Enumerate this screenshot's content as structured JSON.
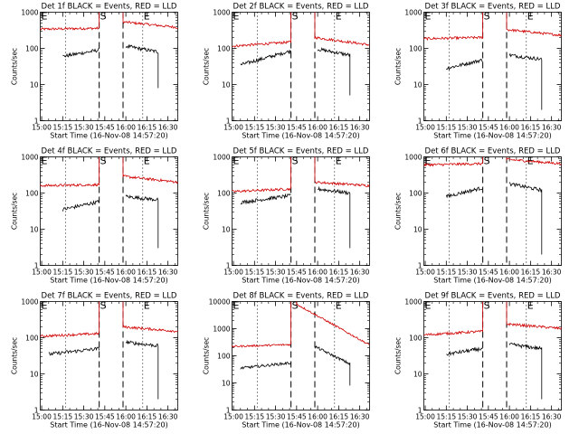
{
  "chart_data": [
    {
      "type": "line",
      "title": "Det 1f BLACK = Events, RED = LLD",
      "xlabel": "Start Time (16-Nov-08 14:57:20)",
      "ylabel": "Counts/sec",
      "y_scale": "log",
      "ylim": [
        1,
        1000
      ],
      "y_ticks": [
        "1",
        "10",
        "100",
        "1000"
      ],
      "x_ticks": [
        "15:00",
        "15:15",
        "15:30",
        "15:45",
        "16:00",
        "16:15",
        "16:30"
      ],
      "xlim": [
        "14:59",
        "16:37"
      ],
      "markers": {
        "dotted": [
          "15:17",
          "16:12"
        ],
        "dashed": [
          "15:41",
          "15:58"
        ],
        "labels": [
          {
            "text": "E",
            "at": "14:59"
          },
          {
            "text": "S",
            "at": "15:41"
          },
          {
            "text": "E",
            "at": "16:12"
          }
        ]
      },
      "series": [
        {
          "color": "#d00000",
          "segments": [
            {
              "start": "14:59",
              "end": "15:41",
              "y0": 340,
              "y1": 360
            },
            {
              "start": "15:58",
              "end": "16:37",
              "y0": 540,
              "y1": 380
            }
          ]
        },
        {
          "color": "#000000",
          "segments": [
            {
              "start": "15:15",
              "end": "15:41",
              "y0": 60,
              "y1": 90
            },
            {
              "start": "16:00",
              "end": "16:23",
              "y0": 115,
              "y1": 80,
              "drop": 8
            }
          ]
        }
      ]
    },
    {
      "type": "line",
      "title": "Det 2f BLACK = Events, RED = LLD",
      "xlabel": "Start Time (16-Nov-08 14:57:20)",
      "ylabel": "Counts/sec",
      "y_scale": "log",
      "ylim": [
        1,
        1000
      ],
      "y_ticks": [
        "1",
        "10",
        "100",
        "1000"
      ],
      "x_ticks": [
        "15:00",
        "15:15",
        "15:30",
        "15:45",
        "16:00",
        "16:15",
        "16:30"
      ],
      "xlim": [
        "14:59",
        "16:37"
      ],
      "markers": {
        "dotted": [
          "15:17",
          "16:12"
        ],
        "dashed": [
          "15:41",
          "15:58"
        ],
        "labels": [
          {
            "text": "E",
            "at": "14:59"
          },
          {
            "text": "S",
            "at": "15:41"
          },
          {
            "text": "E",
            "at": "16:12"
          }
        ]
      },
      "series": [
        {
          "color": "#d00000",
          "segments": [
            {
              "start": "14:59",
              "end": "15:41",
              "y0": 115,
              "y1": 150
            },
            {
              "start": "15:58",
              "end": "16:37",
              "y0": 200,
              "y1": 125
            }
          ]
        },
        {
          "color": "#000000",
          "segments": [
            {
              "start": "15:05",
              "end": "15:41",
              "y0": 35,
              "y1": 85
            },
            {
              "start": "16:00",
              "end": "16:23",
              "y0": 95,
              "y1": 65,
              "drop": 5
            }
          ]
        }
      ]
    },
    {
      "type": "line",
      "title": "Det 3f BLACK = Events, RED = LLD",
      "xlabel": "Start Time (16-Nov-08 14:57:20)",
      "ylabel": "Counts/sec",
      "y_scale": "log",
      "ylim": [
        1,
        1000
      ],
      "y_ticks": [
        "1",
        "10",
        "100",
        "1000"
      ],
      "x_ticks": [
        "15:00",
        "15:15",
        "15:30",
        "15:45",
        "16:00",
        "16:15",
        "16:30"
      ],
      "xlim": [
        "14:59",
        "16:37"
      ],
      "markers": {
        "dotted": [
          "15:17",
          "16:12"
        ],
        "dashed": [
          "15:41",
          "15:58"
        ],
        "labels": [
          {
            "text": "E",
            "at": "14:59"
          },
          {
            "text": "S",
            "at": "15:41"
          },
          {
            "text": "E",
            "at": "16:12"
          }
        ]
      },
      "series": [
        {
          "color": "#d00000",
          "segments": [
            {
              "start": "14:59",
              "end": "15:41",
              "y0": 185,
              "y1": 200
            },
            {
              "start": "15:58",
              "end": "16:37",
              "y0": 330,
              "y1": 230
            }
          ]
        },
        {
          "color": "#000000",
          "segments": [
            {
              "start": "15:15",
              "end": "15:41",
              "y0": 28,
              "y1": 48
            },
            {
              "start": "16:00",
              "end": "16:23",
              "y0": 65,
              "y1": 50,
              "drop": 2
            }
          ]
        }
      ]
    },
    {
      "type": "line",
      "title": "Det 4f BLACK = Events, RED = LLD",
      "xlabel": "Start Time (16-Nov-08 14:57:20)",
      "ylabel": "Counts/sec",
      "y_scale": "log",
      "ylim": [
        1,
        1000
      ],
      "y_ticks": [
        "1",
        "10",
        "100",
        "1000"
      ],
      "x_ticks": [
        "15:00",
        "15:15",
        "15:30",
        "15:45",
        "16:00",
        "16:15",
        "16:30"
      ],
      "xlim": [
        "14:59",
        "16:37"
      ],
      "markers": {
        "dotted": [
          "15:17",
          "16:12"
        ],
        "dashed": [
          "15:41",
          "15:58"
        ],
        "labels": [
          {
            "text": "E",
            "at": "14:59"
          },
          {
            "text": "S",
            "at": "15:41"
          },
          {
            "text": "E",
            "at": "16:12"
          }
        ]
      },
      "series": [
        {
          "color": "#d00000",
          "segments": [
            {
              "start": "14:59",
              "end": "15:41",
              "y0": 160,
              "y1": 170
            },
            {
              "start": "15:58",
              "end": "16:37",
              "y0": 290,
              "y1": 200
            }
          ]
        },
        {
          "color": "#000000",
          "segments": [
            {
              "start": "15:15",
              "end": "15:41",
              "y0": 35,
              "y1": 58
            },
            {
              "start": "16:00",
              "end": "16:23",
              "y0": 80,
              "y1": 65,
              "drop": 3
            }
          ]
        }
      ]
    },
    {
      "type": "line",
      "title": "Det 5f BLACK = Events, RED = LLD",
      "xlabel": "Start Time (16-Nov-08 14:57:20)",
      "ylabel": "Counts/sec",
      "y_scale": "log",
      "ylim": [
        1,
        1000
      ],
      "y_ticks": [
        "1",
        "10",
        "100",
        "1000"
      ],
      "x_ticks": [
        "15:00",
        "15:15",
        "15:30",
        "15:45",
        "16:00",
        "16:15",
        "16:30"
      ],
      "xlim": [
        "14:59",
        "16:37"
      ],
      "markers": {
        "dotted": [
          "15:17",
          "16:12"
        ],
        "dashed": [
          "15:41",
          "15:58"
        ],
        "labels": [
          {
            "text": "E",
            "at": "14:59"
          },
          {
            "text": "S",
            "at": "15:41"
          },
          {
            "text": "E",
            "at": "16:12"
          }
        ]
      },
      "series": [
        {
          "color": "#d00000",
          "segments": [
            {
              "start": "14:59",
              "end": "15:41",
              "y0": 110,
              "y1": 130
            },
            {
              "start": "15:58",
              "end": "16:37",
              "y0": 200,
              "y1": 160
            }
          ]
        },
        {
          "color": "#000000",
          "segments": [
            {
              "start": "15:05",
              "end": "15:41",
              "y0": 55,
              "y1": 85
            },
            {
              "start": "16:00",
              "end": "16:23",
              "y0": 130,
              "y1": 100,
              "drop": 3
            }
          ]
        }
      ]
    },
    {
      "type": "line",
      "title": "Det 6f BLACK = Events, RED = LLD",
      "xlabel": "Start Time (16-Nov-08 14:57:20)",
      "ylabel": "Counts/sec",
      "y_scale": "log",
      "ylim": [
        1,
        1000
      ],
      "y_ticks": [
        "1",
        "10",
        "100",
        "1000"
      ],
      "x_ticks": [
        "15:00",
        "15:15",
        "15:30",
        "15:45",
        "16:00",
        "16:15",
        "16:30"
      ],
      "xlim": [
        "14:59",
        "16:37"
      ],
      "markers": {
        "dotted": [
          "15:17",
          "16:12"
        ],
        "dashed": [
          "15:41",
          "15:58"
        ],
        "labels": [
          {
            "text": "E",
            "at": "14:59"
          },
          {
            "text": "S",
            "at": "15:41"
          },
          {
            "text": "E",
            "at": "16:12"
          }
        ]
      },
      "series": [
        {
          "color": "#d00000",
          "segments": [
            {
              "start": "14:59",
              "end": "15:41",
              "y0": 600,
              "y1": 650
            },
            {
              "start": "15:58",
              "end": "16:37",
              "y0": 850,
              "y1": 650
            }
          ]
        },
        {
          "color": "#000000",
          "segments": [
            {
              "start": "15:15",
              "end": "15:41",
              "y0": 80,
              "y1": 140
            },
            {
              "start": "16:00",
              "end": "16:23",
              "y0": 180,
              "y1": 120,
              "drop": 2
            }
          ]
        }
      ]
    },
    {
      "type": "line",
      "title": "Det 7f BLACK = Events, RED = LLD",
      "xlabel": "Start Time (16-Nov-08 14:57:20)",
      "ylabel": "Counts/sec",
      "y_scale": "log",
      "ylim": [
        1,
        1000
      ],
      "y_ticks": [
        "1",
        "10",
        "100",
        "1000"
      ],
      "x_ticks": [
        "15:00",
        "15:15",
        "15:30",
        "15:45",
        "16:00",
        "16:15",
        "16:30"
      ],
      "xlim": [
        "14:59",
        "16:37"
      ],
      "markers": {
        "dotted": [
          "15:17",
          "16:12"
        ],
        "dashed": [
          "15:41",
          "15:58"
        ],
        "labels": [
          {
            "text": "E",
            "at": "14:59"
          },
          {
            "text": "S",
            "at": "15:41"
          },
          {
            "text": "E",
            "at": "16:12"
          }
        ]
      },
      "series": [
        {
          "color": "#d00000",
          "segments": [
            {
              "start": "14:59",
              "end": "15:41",
              "y0": 110,
              "y1": 130
            },
            {
              "start": "15:58",
              "end": "16:37",
              "y0": 200,
              "y1": 150
            }
          ]
        },
        {
          "color": "#000000",
          "segments": [
            {
              "start": "15:05",
              "end": "15:41",
              "y0": 35,
              "y1": 50
            },
            {
              "start": "16:00",
              "end": "16:23",
              "y0": 75,
              "y1": 60,
              "drop": 2
            }
          ]
        }
      ]
    },
    {
      "type": "line",
      "title": "Det 8f BLACK = Events, RED = LLD",
      "xlabel": "Start Time (16-Nov-08 14:57:20)",
      "ylabel": "Counts/sec",
      "y_scale": "log",
      "ylim": [
        1,
        10000
      ],
      "y_ticks": [
        "1",
        "10",
        "100",
        "1000",
        "10000"
      ],
      "x_ticks": [
        "15:00",
        "15:15",
        "15:30",
        "15:45",
        "16:00",
        "16:15",
        "16:30"
      ],
      "xlim": [
        "14:59",
        "16:37"
      ],
      "markers": {
        "dotted": [
          "15:17",
          "16:12"
        ],
        "dashed": [
          "15:41",
          "15:58"
        ],
        "labels": [
          {
            "text": "E",
            "at": "14:59"
          },
          {
            "text": "S",
            "at": "15:41"
          },
          {
            "text": "E",
            "at": "16:12"
          }
        ]
      },
      "series": [
        {
          "color": "#d00000",
          "segments": [
            {
              "start": "14:59",
              "end": "15:41",
              "y0": 220,
              "y1": 260
            },
            {
              "start": "15:45",
              "end": "16:37",
              "y0": 8000,
              "y1": 250
            }
          ]
        },
        {
          "color": "#000000",
          "segments": [
            {
              "start": "15:05",
              "end": "15:41",
              "y0": 35,
              "y1": 55
            },
            {
              "start": "15:58",
              "end": "16:23",
              "y0": 220,
              "y1": 50,
              "drop": 8
            }
          ]
        }
      ]
    },
    {
      "type": "line",
      "title": "Det 9f BLACK = Events, RED = LLD",
      "xlabel": "Start Time (16-Nov-08 14:57:20)",
      "ylabel": "Counts/sec",
      "y_scale": "log",
      "ylim": [
        1,
        1000
      ],
      "y_ticks": [
        "1",
        "10",
        "100",
        "1000"
      ],
      "x_ticks": [
        "15:00",
        "15:15",
        "15:30",
        "15:45",
        "16:00",
        "16:15",
        "16:30"
      ],
      "xlim": [
        "14:59",
        "16:37"
      ],
      "markers": {
        "dotted": [
          "15:17",
          "16:12"
        ],
        "dashed": [
          "15:41",
          "15:58"
        ],
        "labels": [
          {
            "text": "E",
            "at": "14:59"
          },
          {
            "text": "S",
            "at": "15:41"
          },
          {
            "text": "E",
            "at": "16:12"
          }
        ]
      },
      "series": [
        {
          "color": "#d00000",
          "segments": [
            {
              "start": "14:59",
              "end": "15:41",
              "y0": 120,
              "y1": 150
            },
            {
              "start": "15:58",
              "end": "16:37",
              "y0": 240,
              "y1": 180
            }
          ]
        },
        {
          "color": "#000000",
          "segments": [
            {
              "start": "15:15",
              "end": "15:41",
              "y0": 35,
              "y1": 50
            },
            {
              "start": "16:00",
              "end": "16:23",
              "y0": 65,
              "y1": 50,
              "drop": 2
            }
          ]
        }
      ]
    }
  ]
}
